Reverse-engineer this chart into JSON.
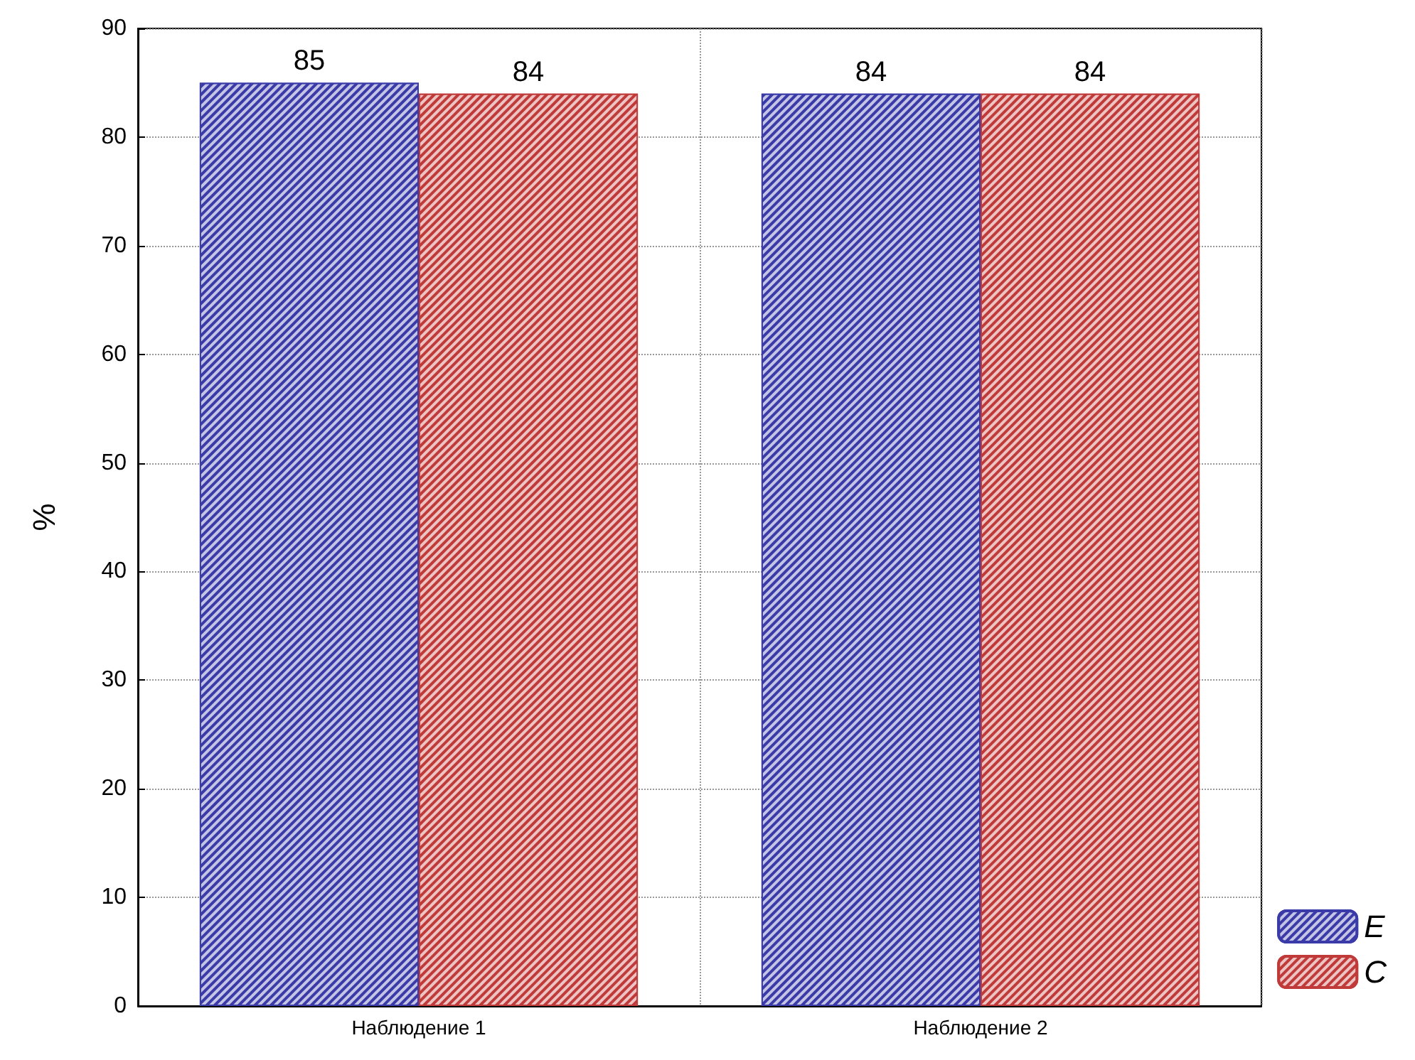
{
  "chart_data": {
    "type": "bar",
    "ylabel": "%",
    "categories": [
      "Наблюдение 1",
      "Наблюдение 2"
    ],
    "series": [
      {
        "name": "E",
        "color": "#3a3aa8",
        "values": [
          85,
          84
        ]
      },
      {
        "name": "C",
        "color": "#c03a3a",
        "values": [
          84,
          84
        ]
      }
    ],
    "ylim": [
      0,
      90
    ],
    "yticks": [
      0,
      10,
      20,
      30,
      40,
      50,
      60,
      70,
      80,
      90
    ],
    "grid": true,
    "legend": "bottom right",
    "data_labels": true
  }
}
